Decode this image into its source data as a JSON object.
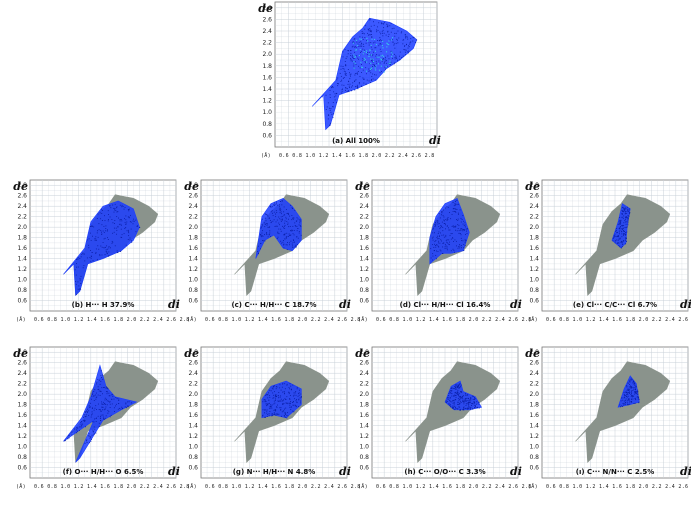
{
  "axis_label_y": "de",
  "axis_label_x": "di",
  "unit": "(Å)",
  "x_tick_string": "0.6 0.8 1.0 1.2 1.4 1.6 1.8 2.0 2.2 2.4 2.6 2.8",
  "chart_data": [
    {
      "type": "scatter",
      "title": "(a) All 100%",
      "xlim": [
        0.4,
        2.8
      ],
      "ylim": [
        0.4,
        2.9
      ],
      "yticks": [
        0.6,
        0.8,
        1.0,
        1.2,
        1.4,
        1.6,
        1.8,
        2.0,
        2.2,
        2.4,
        2.6,
        2.8
      ],
      "highlight_fraction": 1.0
    },
    {
      "type": "scatter",
      "title": "(b) H··· H 37.9%",
      "xlim": [
        0.4,
        2.8
      ],
      "ylim": [
        0.4,
        2.9
      ],
      "yticks": [
        0.6,
        0.8,
        1.0,
        1.2,
        1.4,
        1.6,
        1.8,
        2.0,
        2.2,
        2.4,
        2.6,
        2.8
      ],
      "highlight_fraction": 0.379
    },
    {
      "type": "scatter",
      "title": "(c) C··· H/H··· C 18.7%",
      "xlim": [
        0.4,
        2.8
      ],
      "ylim": [
        0.4,
        2.9
      ],
      "yticks": [
        0.6,
        0.8,
        1.0,
        1.2,
        1.4,
        1.6,
        1.8,
        2.0,
        2.2,
        2.4,
        2.6,
        2.8
      ],
      "highlight_fraction": 0.187
    },
    {
      "type": "scatter",
      "title": "(d) Cl··· H/H··· Cl 16.4%",
      "xlim": [
        0.4,
        2.8
      ],
      "ylim": [
        0.4,
        2.9
      ],
      "yticks": [
        0.6,
        0.8,
        1.0,
        1.2,
        1.4,
        1.6,
        1.8,
        2.0,
        2.2,
        2.4,
        2.6,
        2.8
      ],
      "highlight_fraction": 0.164
    },
    {
      "type": "scatter",
      "title": "(e) Cl··· C/C··· Cl 6.7%",
      "xlim": [
        0.4,
        2.8
      ],
      "ylim": [
        0.4,
        2.9
      ],
      "yticks": [
        0.6,
        0.8,
        1.0,
        1.2,
        1.4,
        1.6,
        1.8,
        2.0,
        2.2,
        2.4,
        2.6,
        2.8
      ],
      "highlight_fraction": 0.067
    },
    {
      "type": "scatter",
      "title": "(f) O··· H/H··· O 6.5%",
      "xlim": [
        0.4,
        2.8
      ],
      "ylim": [
        0.4,
        2.9
      ],
      "yticks": [
        0.6,
        0.8,
        1.0,
        1.2,
        1.4,
        1.6,
        1.8,
        2.0,
        2.2,
        2.4,
        2.6,
        2.8
      ],
      "highlight_fraction": 0.065
    },
    {
      "type": "scatter",
      "title": "(g) N··· H/H··· N 4.8%",
      "xlim": [
        0.4,
        2.8
      ],
      "ylim": [
        0.4,
        2.9
      ],
      "yticks": [
        0.6,
        0.8,
        1.0,
        1.2,
        1.4,
        1.6,
        1.8,
        2.0,
        2.2,
        2.4,
        2.6,
        2.8
      ],
      "highlight_fraction": 0.048
    },
    {
      "type": "scatter",
      "title": "(h) C··· O/O··· C 3.3%",
      "xlim": [
        0.4,
        2.8
      ],
      "ylim": [
        0.4,
        2.9
      ],
      "yticks": [
        0.6,
        0.8,
        1.0,
        1.2,
        1.4,
        1.6,
        1.8,
        2.0,
        2.2,
        2.4,
        2.6,
        2.8
      ],
      "highlight_fraction": 0.033
    },
    {
      "type": "scatter",
      "title": "(ı) C··· N/N··· C 2.5%",
      "xlim": [
        0.4,
        2.8
      ],
      "ylim": [
        0.4,
        2.9
      ],
      "yticks": [
        0.6,
        0.8,
        1.0,
        1.2,
        1.4,
        1.6,
        1.8,
        2.0,
        2.2,
        2.4,
        2.6,
        2.8
      ],
      "highlight_fraction": 0.025
    }
  ],
  "colors": {
    "highlight": "#1a3cff",
    "base": "#8a938c",
    "core": "#37c8e8",
    "grid": "#c9d0d8",
    "frame": "#777777"
  }
}
